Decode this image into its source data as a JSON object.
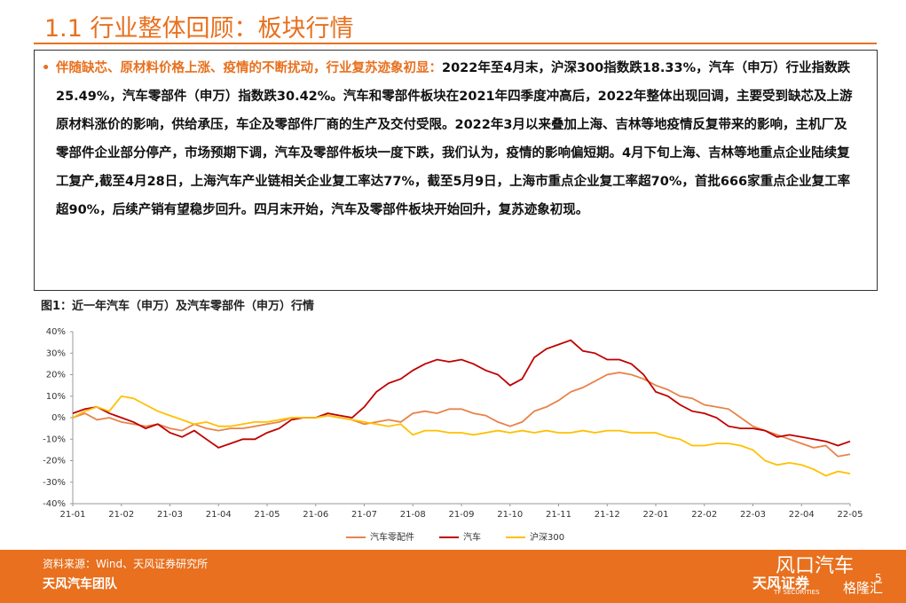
{
  "header": {
    "title": "1.1 行业整体回顾：板块行情"
  },
  "body": {
    "bullet": "•",
    "lead": "伴随缺芯、原材料价格上涨、疫情的不断扰动，行业复苏迹象初显：",
    "text": "2022年至4月末，沪深300指数跌18.33%，汽车（申万）行业指数跌25.49%，汽车零部件（申万）指数跌30.42%。汽车和零部件板块在2021年四季度冲高后，2022年整体出现回调，主要受到缺芯及上游原材料涨价的影响，供给承压，车企及零部件厂商的生产及交付受限。2022年3月以来叠加上海、吉林等地疫情反复带来的影响，主机厂及零部件企业部分停产，市场预期下调，汽车及零部件板块一度下跌，我们认为，疫情的影响偏短期。4月下旬上海、吉林等地重点企业陆续复工复产,截至4月28日，上海汽车产业链相关企业复工率达77%，截至5月9日，上海市重点企业复工率超70%，首批666家重点企业复工率超90%，后续产销有望稳步回升。四月末开始，汽车及零部件板块开始回升，复苏迹象初现。"
  },
  "chart_data": {
    "type": "line",
    "title": "图1：近一年汽车（申万）及汽车零部件（申万）行情",
    "categories": [
      "21-01",
      null,
      null,
      null,
      "21-02",
      null,
      null,
      null,
      "21-03",
      null,
      null,
      null,
      "21-04",
      null,
      null,
      null,
      "21-05",
      null,
      null,
      null,
      "21-06",
      null,
      null,
      null,
      "21-07",
      null,
      null,
      null,
      "21-08",
      null,
      null,
      null,
      "21-09",
      null,
      null,
      null,
      "21-10",
      null,
      null,
      null,
      "21-11",
      null,
      null,
      null,
      "21-12",
      null,
      null,
      null,
      "22-01",
      null,
      null,
      null,
      "22-02",
      null,
      null,
      null,
      "22-03",
      null,
      null,
      null,
      "22-04",
      null,
      null,
      null,
      "22-05"
    ],
    "series": [
      {
        "name": "汽车零配件",
        "color": "#e8834a",
        "values": [
          0,
          2,
          -1,
          0,
          -2,
          -3,
          -4,
          -3,
          -5,
          -6,
          -3,
          -5,
          -6,
          -5,
          -5,
          -4,
          -3,
          -2,
          0,
          0,
          0,
          1,
          0,
          -1,
          -3,
          -2,
          -1,
          -2,
          2,
          3,
          2,
          4,
          4,
          2,
          1,
          -2,
          -4,
          -2,
          3,
          5,
          8,
          12,
          14,
          17,
          20,
          21,
          20,
          18,
          15,
          13,
          10,
          9,
          6,
          5,
          4,
          0,
          -4,
          -6,
          -8,
          -10,
          -12,
          -14,
          -13,
          -18,
          -17
        ]
      },
      {
        "name": "汽车",
        "color": "#c00000",
        "values": [
          2,
          4,
          5,
          2,
          0,
          -2,
          -5,
          -3,
          -7,
          -9,
          -6,
          -10,
          -14,
          -12,
          -10,
          -10,
          -7,
          -5,
          -1,
          0,
          0,
          2,
          1,
          0,
          5,
          12,
          16,
          18,
          22,
          25,
          27,
          26,
          27,
          25,
          22,
          20,
          15,
          18,
          28,
          32,
          34,
          36,
          31,
          30,
          27,
          27,
          25,
          20,
          12,
          10,
          6,
          3,
          2,
          0,
          -4,
          -5,
          -5,
          -6,
          -9,
          -8,
          -9,
          -10,
          -11,
          -13,
          -11
        ]
      },
      {
        "name": "沪深300",
        "color": "#ffc000",
        "values": [
          0,
          3,
          5,
          3,
          10,
          9,
          6,
          3,
          1,
          -1,
          -3,
          -2,
          -4,
          -4,
          -3,
          -2,
          -2,
          -1,
          0,
          0,
          0,
          1,
          0,
          -1,
          -2,
          -3,
          -4,
          -3,
          -8,
          -6,
          -6,
          -7,
          -7,
          -8,
          -7,
          -6,
          -7,
          -6,
          -7,
          -6,
          -7,
          -7,
          -6,
          -7,
          -6,
          -6,
          -7,
          -7,
          -7,
          -9,
          -10,
          -13,
          -13,
          -12,
          -12,
          -13,
          -15,
          -20,
          -22,
          -21,
          -22,
          -24,
          -27,
          -25,
          -26
        ]
      }
    ],
    "ylim": [
      -40,
      40
    ],
    "yticks": [
      {
        "value": -40,
        "label": "-40%"
      },
      {
        "value": -30,
        "label": "-30%"
      },
      {
        "value": -20,
        "label": "-20%"
      },
      {
        "value": -10,
        "label": "-10%"
      },
      {
        "value": 0,
        "label": "0%"
      },
      {
        "value": 10,
        "label": "10%"
      },
      {
        "value": 20,
        "label": "20%"
      },
      {
        "value": 30,
        "label": "30%"
      },
      {
        "value": 40,
        "label": "40%"
      }
    ],
    "grid": false,
    "legend": "bottom"
  },
  "footer": {
    "source": "资料来源：Wind、天风证券研究所",
    "team": "天风汽车团队",
    "brand": "天风证券",
    "brand_en": "TF SECURITIES",
    "watermark": "风口汽车",
    "watermark2": "格隆汇",
    "page": "5"
  }
}
